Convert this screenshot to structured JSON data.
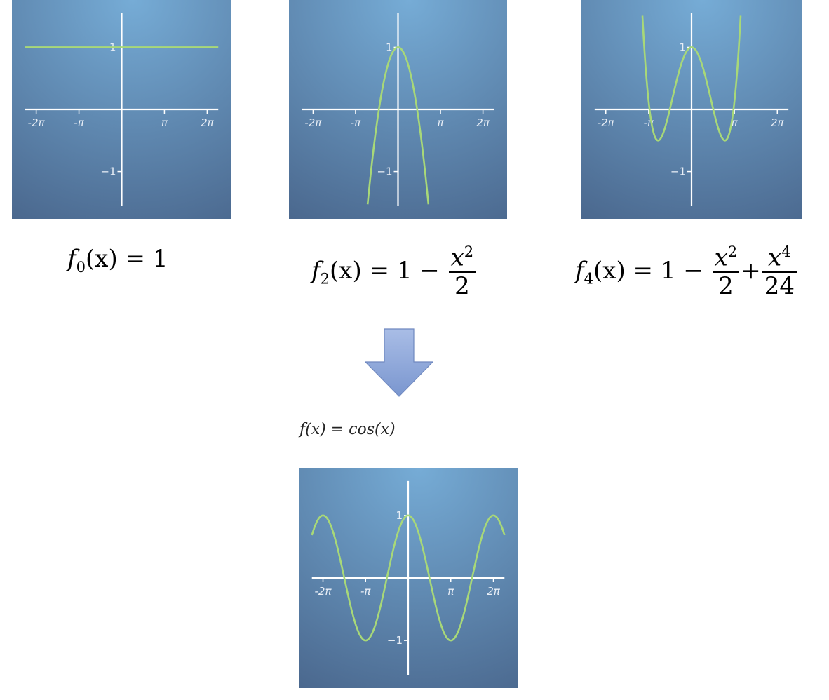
{
  "chart_data": [
    {
      "type": "line",
      "id": "f0",
      "formula_display": {
        "lhs": "f",
        "sub": "0",
        "arg": "(x) = 1"
      },
      "function": "1",
      "xlim": [
        -7.1,
        7.1
      ],
      "ylim": [
        -1.55,
        1.55
      ],
      "x_ticks": [
        {
          "label": "-2π",
          "value": -6.2832
        },
        {
          "label": "-π",
          "value": -3.1416
        },
        {
          "label": "π",
          "value": 3.1416
        },
        {
          "label": "2π",
          "value": 6.2832
        }
      ],
      "y_ticks": [
        {
          "label": "1",
          "value": 1
        },
        {
          "label": "−1",
          "value": -1
        }
      ],
      "grid": false
    },
    {
      "type": "line",
      "id": "f2",
      "formula_display": {
        "lhs": "f",
        "sub": "2",
        "arg": "(x) = 1 −",
        "frac_num": "x",
        "frac_num_sup": "2",
        "frac_den": "2"
      },
      "function": "1 - x^2/2",
      "xlim": [
        -7.1,
        7.1
      ],
      "ylim": [
        -1.55,
        1.55
      ],
      "x_ticks": [
        {
          "label": "-2π",
          "value": -6.2832
        },
        {
          "label": "-π",
          "value": -3.1416
        },
        {
          "label": "π",
          "value": 3.1416
        },
        {
          "label": "2π",
          "value": 6.2832
        }
      ],
      "y_ticks": [
        {
          "label": "1",
          "value": 1
        },
        {
          "label": "−1",
          "value": -1
        }
      ],
      "grid": false
    },
    {
      "type": "line",
      "id": "f4",
      "formula_display": {
        "lhs": "f",
        "sub": "4",
        "arg": "(x) = 1 −",
        "frac1_num": "x",
        "frac1_num_sup": "2",
        "frac1_den": "2",
        "plus": "+",
        "frac2_num": "x",
        "frac2_num_sup": "4",
        "frac2_den": "24"
      },
      "function": "1 - x^2/2 + x^4/24",
      "xlim": [
        -7.1,
        7.1
      ],
      "ylim": [
        -1.55,
        1.55
      ],
      "x_ticks": [
        {
          "label": "-2π",
          "value": -6.2832
        },
        {
          "label": "-π",
          "value": -3.1416
        },
        {
          "label": "π",
          "value": 3.1416
        },
        {
          "label": "2π",
          "value": 6.2832
        }
      ],
      "y_ticks": [
        {
          "label": "1",
          "value": 1
        },
        {
          "label": "−1",
          "value": -1
        }
      ],
      "grid": false
    },
    {
      "type": "line",
      "id": "cos",
      "formula_display": {
        "text": "f(x) = cos(x)"
      },
      "function": "cos(x)",
      "xlim": [
        -7.1,
        7.1
      ],
      "ylim": [
        -1.55,
        1.55
      ],
      "x_ticks": [
        {
          "label": "-2π",
          "value": -6.2832
        },
        {
          "label": "-π",
          "value": -3.1416
        },
        {
          "label": "π",
          "value": 3.1416
        },
        {
          "label": "2π",
          "value": 6.2832
        }
      ],
      "y_ticks": [
        {
          "label": "1",
          "value": 1
        },
        {
          "label": "−1",
          "value": -1
        }
      ],
      "grid": false
    }
  ],
  "colors": {
    "curve": "#a8d878",
    "axis": "#ffffff",
    "bg_top": "#76acd6",
    "bg_bottom": "#4a678d",
    "arrow_fill": "#8ea6d6",
    "arrow_stroke": "#6f88bf"
  }
}
